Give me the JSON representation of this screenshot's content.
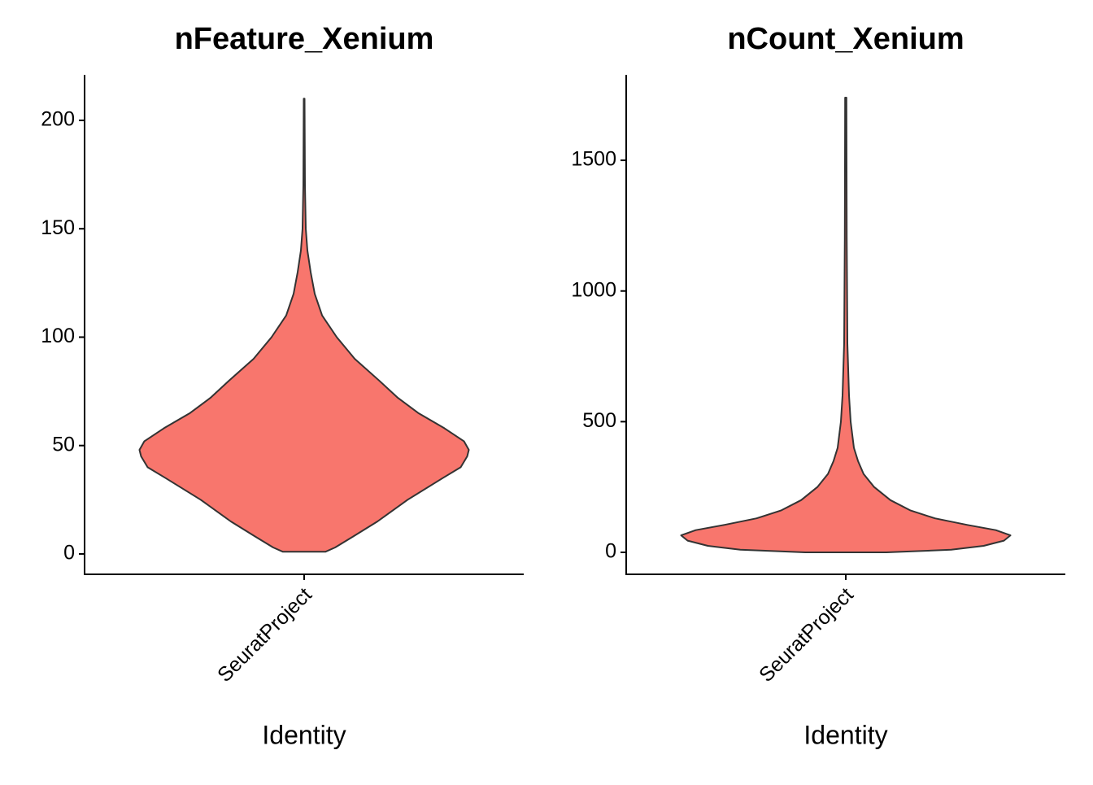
{
  "chart_data": [
    {
      "type": "violin",
      "title": "nFeature_Xenium",
      "xlabel": "Identity",
      "categories": [
        "SeuratProject"
      ],
      "color": "#F8766D",
      "ylim": [
        -9.4,
        221
      ],
      "yticks": [
        0,
        50,
        100,
        150,
        200
      ],
      "violin": {
        "values": [
          1,
          3,
          8,
          15,
          25,
          35,
          40,
          45,
          48,
          52,
          58,
          65,
          72,
          80,
          90,
          100,
          110,
          120,
          130,
          140,
          150,
          170,
          210
        ],
        "density": [
          26,
          38,
          60,
          90,
          127,
          170,
          192,
          200,
          202,
          196,
          172,
          140,
          115,
          92,
          62,
          40,
          22,
          13,
          8,
          4,
          2,
          1,
          0.5
        ]
      }
    },
    {
      "type": "violin",
      "title": "nCount_Xenium",
      "xlabel": "Identity",
      "categories": [
        "SeuratProject"
      ],
      "color": "#F8766D",
      "ylim": [
        -84,
        1827
      ],
      "yticks": [
        0,
        500,
        1000,
        1500
      ],
      "violin": {
        "values": [
          0,
          10,
          25,
          45,
          65,
          85,
          105,
          130,
          160,
          200,
          250,
          300,
          350,
          400,
          500,
          600,
          800,
          1200,
          1740
        ],
        "density": [
          50,
          130,
          170,
          195,
          203,
          185,
          150,
          110,
          80,
          55,
          35,
          22,
          15,
          10,
          6,
          4,
          2,
          1.2,
          0.8
        ]
      }
    }
  ]
}
